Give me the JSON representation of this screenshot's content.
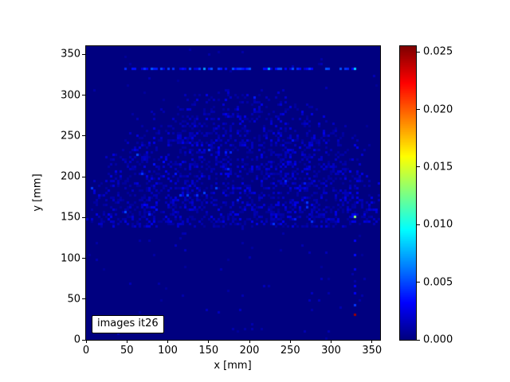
{
  "figure": {
    "background_color": "#ffffff",
    "text_color": "#000000"
  },
  "chart_data": {
    "type": "heatmap",
    "title": "",
    "xlabel": "x [mm]",
    "ylabel": "y [mm]",
    "annotation": "images it26",
    "xlim": [
      0,
      360
    ],
    "ylim": [
      0,
      360
    ],
    "xticks": [
      0,
      50,
      100,
      150,
      200,
      250,
      300,
      350
    ],
    "xtick_labels": [
      "0",
      "50",
      "100",
      "150",
      "200",
      "250",
      "300",
      "350"
    ],
    "yticks": [
      0,
      50,
      100,
      150,
      200,
      250,
      300,
      350
    ],
    "ytick_labels": [
      "0",
      "50",
      "100",
      "150",
      "200",
      "250",
      "300",
      "350"
    ],
    "grid": false,
    "colormap": "jet",
    "vmin": 0.0,
    "vmax": 0.0255,
    "background_value": 0.0,
    "background_color": "#000080",
    "colorbar": {
      "position": "right",
      "ticks": [
        0.0,
        0.005,
        0.01,
        0.015,
        0.02,
        0.025
      ],
      "tick_labels": [
        "0.000",
        "0.005",
        "0.010",
        "0.015",
        "0.020",
        "0.025"
      ]
    },
    "bins_per_axis": 123,
    "random_seed": 42,
    "hot_pixels": [
      {
        "x": 330,
        "y": 152,
        "value": 0.0133,
        "note": "bright light-green pixel"
      },
      {
        "x": 330,
        "y": 332,
        "value": 0.0085,
        "note": "cyan pixel at right end of dotted row"
      },
      {
        "x": 330,
        "y": 41,
        "value": 0.0045,
        "note": "blue pixel lower right"
      },
      {
        "x": 330,
        "y": 30,
        "value": 0.0247,
        "note": "dark red pixel lower right"
      },
      {
        "x": 145,
        "y": 332,
        "value": 0.007,
        "note": "brighter dot in row"
      },
      {
        "x": 225,
        "y": 332,
        "value": 0.0075,
        "note": "brighter dot in row"
      },
      {
        "x": 123,
        "y": 176,
        "value": 0.005,
        "note": "brighter speckle in dome"
      },
      {
        "x": 64,
        "y": 226,
        "value": 0.005,
        "note": "brighter speckle in dome"
      }
    ],
    "dot_row": {
      "y": 332,
      "x_start": 46,
      "x_end": 334,
      "fill_probability": 0.62,
      "value_range": [
        0.002,
        0.0055
      ]
    },
    "noise_dome": {
      "center_x": 185,
      "center_y": 115,
      "radius": 190,
      "y_min": 138,
      "y_max": 308,
      "count": 1900,
      "value_range": [
        0.0007,
        0.0028
      ]
    },
    "sparse_noise": {
      "count": 140,
      "value_range": [
        0.0006,
        0.0016
      ]
    },
    "beam_column": {
      "x": 330,
      "y_min": 55,
      "y_max": 145,
      "count": 7,
      "value_range": [
        0.001,
        0.0035
      ]
    }
  }
}
